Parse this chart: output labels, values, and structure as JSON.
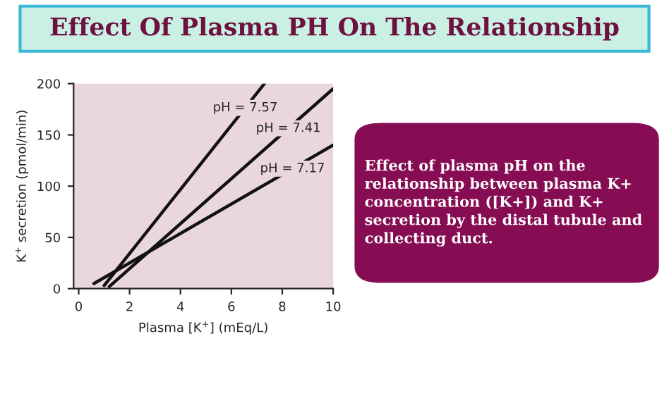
{
  "chart_data": [
    {
      "type": "line",
      "title": "Effect Of Plasma PH On The Relationship",
      "xlabel": "Plasma [K$^{+}$] (mEq/L)",
      "ylabel": "K$^{+}$ secretion (pmol/min)",
      "series": [
        {
          "name": "pH = 7.57",
          "color": "#111111",
          "x": [
            1.0,
            7.3
          ],
          "values": [
            3,
            200
          ]
        },
        {
          "name": "pH = 7.41",
          "color": "#111111",
          "x": [
            1.2,
            10
          ],
          "values": [
            2,
            195
          ]
        },
        {
          "name": "pH = 7.17",
          "color": "#111111",
          "x": [
            0.6,
            10
          ],
          "values": [
            5,
            140
          ]
        }
      ],
      "xlim": [
        -0.2,
        10
      ],
      "xticks": [
        0,
        2,
        4,
        6,
        8,
        10
      ],
      "ylim": [
        0,
        200
      ],
      "yticks": [
        0,
        50,
        100,
        150,
        200
      ],
      "grid": false,
      "legend": false
    },
    {
      "type": "other",
      "annotations": [
        "Effect of plasma pH on the relationship between plasma K+ concentration ([K+]) and K+ secretion by the distal tubule and collecting duct."
      ]
    }
  ]
}
